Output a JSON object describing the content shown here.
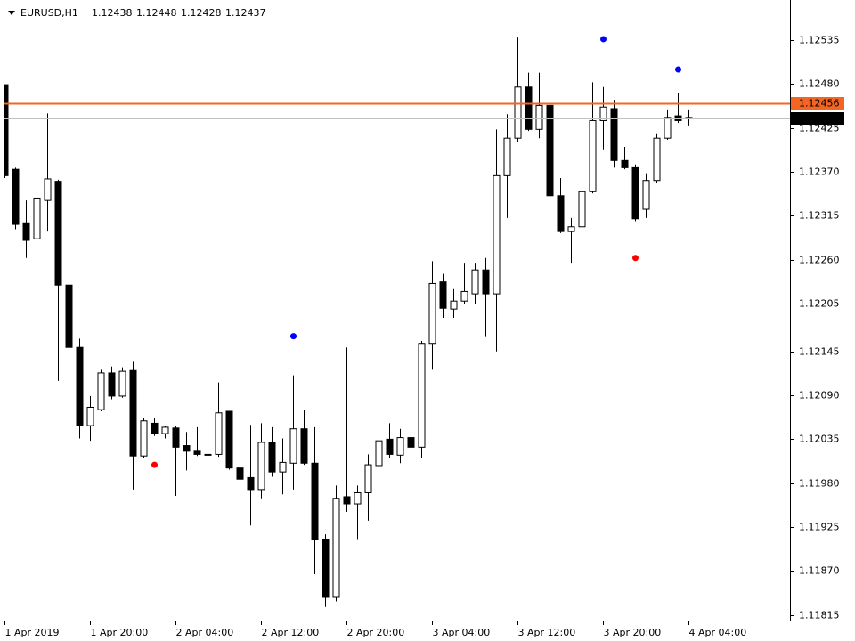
{
  "header": {
    "symbol": "EURUSD,H1",
    "ohlc": [
      1.12438,
      1.12448,
      1.12428,
      1.12437
    ]
  },
  "chart_data": {
    "type": "candlestick",
    "categories": [
      "1 Apr 2019",
      null,
      null,
      null,
      null,
      null,
      null,
      null,
      "1 Apr 20:00",
      null,
      null,
      null,
      null,
      null,
      null,
      null,
      "2 Apr 04:00",
      null,
      null,
      null,
      null,
      null,
      null,
      null,
      "2 Apr 12:00",
      null,
      null,
      null,
      null,
      null,
      null,
      null,
      "2 Apr 20:00",
      null,
      null,
      null,
      null,
      null,
      null,
      null,
      "3 Apr 04:00",
      null,
      null,
      null,
      null,
      null,
      null,
      null,
      "3 Apr 12:00",
      null,
      null,
      null,
      null,
      null,
      null,
      null,
      "3 Apr 20:00",
      null,
      null,
      null,
      null,
      null,
      null,
      null,
      "4 Apr 04:00"
    ],
    "open": [
      1.12479,
      1.12373,
      1.12306,
      1.12286,
      1.12334,
      1.12358,
      1.12228,
      1.1215,
      1.12052,
      1.12072,
      1.12118,
      1.12089,
      1.12121,
      1.12014,
      1.12055,
      1.12042,
      1.12049,
      1.12027,
      1.1202,
      1.12016,
      1.12016,
      1.1207,
      1.11999,
      1.11987,
      1.11972,
      1.12031,
      1.11994,
      1.12005,
      1.12048,
      1.12005,
      1.1191,
      1.11837,
      1.11963,
      1.11954,
      1.11968,
      1.12002,
      1.12035,
      1.12015,
      1.12037,
      1.12025,
      1.12155,
      1.12232,
      1.12198,
      1.12208,
      1.12217,
      1.12247,
      1.12217,
      1.12365,
      1.12412,
      1.12476,
      1.12423,
      1.12453,
      1.1234,
      1.12295,
      1.12301,
      1.12345,
      1.12434,
      1.12449,
      1.12384,
      1.12375,
      1.12323,
      1.12359,
      1.12412,
      1.1244,
      1.12438
    ],
    "high": [
      1.12479,
      1.12375,
      1.12334,
      1.1247,
      1.12443,
      1.1236,
      1.12234,
      1.12161,
      1.12089,
      1.12122,
      1.12126,
      1.12125,
      1.12132,
      1.12061,
      1.12061,
      1.12052,
      1.12052,
      1.12044,
      1.1205,
      1.1205,
      1.12106,
      1.1207,
      1.12031,
      1.12053,
      1.12055,
      1.1205,
      1.12036,
      1.12115,
      1.12072,
      1.1205,
      1.11916,
      1.11977,
      1.1215,
      1.11977,
      1.12016,
      1.1205,
      1.12055,
      1.12048,
      1.12044,
      1.12158,
      1.12258,
      1.12242,
      1.12223,
      1.12256,
      1.12256,
      1.12262,
      1.12423,
      1.12442,
      1.12538,
      1.12494,
      1.12494,
      1.12494,
      1.12362,
      1.12312,
      1.12384,
      1.12482,
      1.12476,
      1.1246,
      1.12401,
      1.12379,
      1.12368,
      1.12418,
      1.12448,
      1.12469,
      1.12448
    ],
    "low": [
      1.12362,
      1.12298,
      1.12262,
      1.12286,
      1.12295,
      1.12108,
      1.12128,
      1.12036,
      1.12033,
      1.1207,
      1.12085,
      1.12087,
      1.11972,
      1.12011,
      1.12039,
      1.12036,
      1.11964,
      1.11996,
      1.12014,
      1.11952,
      1.12013,
      1.11997,
      1.11894,
      1.11927,
      1.11961,
      1.11988,
      1.11966,
      1.11972,
      1.12003,
      1.11866,
      1.11825,
      1.11832,
      1.11944,
      1.1191,
      1.11933,
      1.11999,
      1.12011,
      1.12005,
      1.12022,
      1.12011,
      1.12122,
      1.12187,
      1.12187,
      1.12204,
      1.12204,
      1.12164,
      1.12145,
      1.12312,
      1.12407,
      1.12421,
      1.12412,
      1.12295,
      1.12293,
      1.12256,
      1.12242,
      1.12343,
      1.12398,
      1.12375,
      1.12373,
      1.12308,
      1.12312,
      1.12356,
      1.1241,
      1.12431,
      1.12428
    ],
    "close": [
      1.12365,
      1.12304,
      1.12284,
      1.12337,
      1.12361,
      1.12228,
      1.1215,
      1.12052,
      1.12075,
      1.12118,
      1.12089,
      1.1212,
      1.12014,
      1.12058,
      1.12042,
      1.1205,
      1.12025,
      1.1202,
      1.12016,
      1.12015,
      1.12068,
      1.11999,
      1.11985,
      1.11972,
      1.12031,
      1.11994,
      1.12006,
      1.12048,
      1.12005,
      1.1191,
      1.11837,
      1.11961,
      1.11954,
      1.11968,
      1.12003,
      1.12033,
      1.12016,
      1.12037,
      1.12025,
      1.12155,
      1.1223,
      1.12199,
      1.12208,
      1.1222,
      1.12247,
      1.12217,
      1.12365,
      1.12412,
      1.12476,
      1.12423,
      1.12453,
      1.1234,
      1.12295,
      1.12301,
      1.12345,
      1.12434,
      1.12451,
      1.12384,
      1.12375,
      1.12311,
      1.12359,
      1.12412,
      1.12438,
      1.12434,
      1.12437
    ],
    "up_color": "#ffffff",
    "down_color": "#000000",
    "signals": [
      {
        "color": "#0000ff",
        "values": [
          null,
          null,
          null,
          null,
          null,
          null,
          null,
          null,
          null,
          null,
          null,
          null,
          null,
          null,
          null,
          null,
          null,
          null,
          null,
          null,
          null,
          null,
          null,
          null,
          null,
          null,
          null,
          1.12164,
          null,
          null,
          null,
          null,
          null,
          null,
          null,
          null,
          null,
          null,
          null,
          null,
          null,
          null,
          null,
          null,
          null,
          null,
          null,
          null,
          null,
          null,
          null,
          null,
          null,
          null,
          null,
          null,
          1.12536,
          null,
          null,
          null,
          null,
          null,
          null,
          1.12498,
          null
        ]
      },
      {
        "color": "#ff0000",
        "values": [
          null,
          null,
          null,
          null,
          null,
          null,
          null,
          null,
          null,
          null,
          null,
          null,
          null,
          null,
          1.12003,
          null,
          null,
          null,
          null,
          null,
          null,
          null,
          null,
          null,
          null,
          null,
          null,
          null,
          null,
          null,
          null,
          null,
          null,
          null,
          null,
          null,
          null,
          null,
          null,
          null,
          null,
          null,
          null,
          null,
          null,
          null,
          null,
          null,
          null,
          null,
          null,
          null,
          null,
          null,
          null,
          null,
          null,
          null,
          null,
          1.12262,
          null,
          null,
          null,
          null,
          null
        ]
      }
    ],
    "price_lines": [
      {
        "value": 1.12456,
        "color": "#f26522"
      },
      {
        "value": 1.12437,
        "color": "#c0c0c0"
      }
    ],
    "ylim": [
      1.11808,
      1.12585
    ],
    "yticks": [
      1.12535,
      {
        "value": 1.1248,
        "label": "1.12480"
      },
      1.12425,
      {
        "value": 1.1237,
        "label": "1.12370"
      },
      1.12315,
      {
        "value": 1.1226,
        "label": "1.12260"
      },
      1.12205,
      1.12145,
      {
        "value": 1.1209,
        "label": "1.12090"
      },
      1.12035,
      {
        "value": 1.1198,
        "label": "1.11980"
      },
      1.11925,
      {
        "value": 1.1187,
        "label": "1.11870"
      },
      1.11815
    ]
  }
}
